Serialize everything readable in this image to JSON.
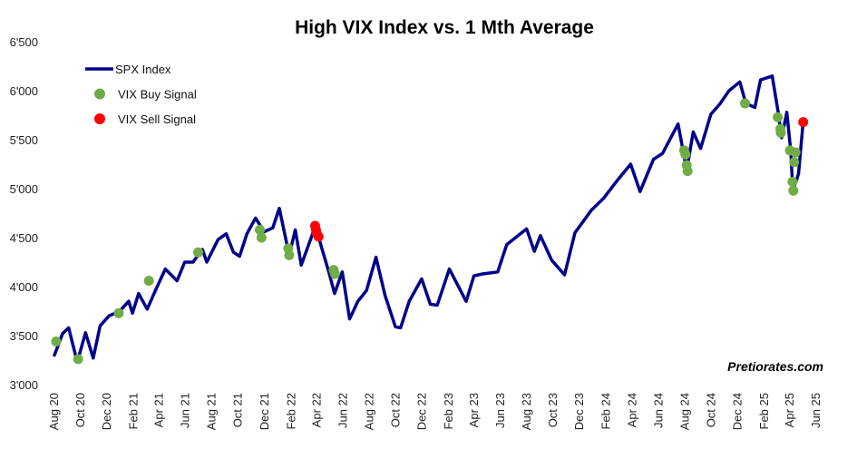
{
  "chart_data": {
    "type": "line",
    "title": "High VIX Index vs. 1 Mth Average",
    "xlabel": "",
    "ylabel": "",
    "ylim": [
      3000,
      6500
    ],
    "yticks": [
      "3'000",
      "3'500",
      "4'000",
      "4'500",
      "5'000",
      "5'500",
      "6'000",
      "6'500"
    ],
    "ytick_values": [
      3000,
      3500,
      4000,
      4500,
      5000,
      5500,
      6000,
      6500
    ],
    "xlim": [
      "2020-08-01",
      "2025-06-01"
    ],
    "xticks": [
      "Aug 20",
      "Oct 20",
      "Dec 20",
      "Feb 21",
      "Apr 21",
      "Jun 21",
      "Aug 21",
      "Oct 21",
      "Dec 21",
      "Feb 22",
      "Apr 22",
      "Jun 22",
      "Aug 22",
      "Oct 22",
      "Dec 22",
      "Feb 23",
      "Apr 23",
      "Jun 23",
      "Aug 23",
      "Oct 23",
      "Dec 23",
      "Feb 24",
      "Apr 24",
      "Jun 24",
      "Aug 24",
      "Oct 24",
      "Dec 24",
      "Feb 25",
      "Apr 25",
      "Jun 25"
    ],
    "xtick_dates": [
      "2020-08-01",
      "2020-10-01",
      "2020-12-01",
      "2021-02-01",
      "2021-04-01",
      "2021-06-01",
      "2021-08-01",
      "2021-10-01",
      "2021-12-01",
      "2022-02-01",
      "2022-04-01",
      "2022-06-01",
      "2022-08-01",
      "2022-10-01",
      "2022-12-01",
      "2023-02-01",
      "2023-04-01",
      "2023-06-01",
      "2023-08-01",
      "2023-10-01",
      "2023-12-01",
      "2024-02-01",
      "2024-04-01",
      "2024-06-01",
      "2024-08-01",
      "2024-10-01",
      "2024-12-01",
      "2025-02-01",
      "2025-04-01",
      "2025-06-01"
    ],
    "legend_position": "top-left",
    "grid": false,
    "series": [
      {
        "name": "SPX Index",
        "kind": "line",
        "color": "#00008B",
        "points": [
          [
            "2020-08-01",
            3300
          ],
          [
            "2020-08-20",
            3520
          ],
          [
            "2020-09-03",
            3580
          ],
          [
            "2020-09-23",
            3230
          ],
          [
            "2020-10-12",
            3530
          ],
          [
            "2020-10-30",
            3270
          ],
          [
            "2020-11-15",
            3600
          ],
          [
            "2020-12-05",
            3700
          ],
          [
            "2020-12-30",
            3750
          ],
          [
            "2021-01-20",
            3850
          ],
          [
            "2021-01-29",
            3730
          ],
          [
            "2021-02-12",
            3930
          ],
          [
            "2021-03-04",
            3770
          ],
          [
            "2021-03-25",
            3980
          ],
          [
            "2021-04-15",
            4180
          ],
          [
            "2021-05-12",
            4060
          ],
          [
            "2021-05-30",
            4250
          ],
          [
            "2021-06-18",
            4250
          ],
          [
            "2021-07-10",
            4380
          ],
          [
            "2021-07-20",
            4250
          ],
          [
            "2021-08-15",
            4480
          ],
          [
            "2021-09-03",
            4540
          ],
          [
            "2021-09-20",
            4350
          ],
          [
            "2021-10-04",
            4310
          ],
          [
            "2021-10-21",
            4540
          ],
          [
            "2021-11-10",
            4700
          ],
          [
            "2021-11-30",
            4560
          ],
          [
            "2021-12-20",
            4600
          ],
          [
            "2022-01-04",
            4800
          ],
          [
            "2022-01-27",
            4320
          ],
          [
            "2022-02-10",
            4580
          ],
          [
            "2022-02-24",
            4220
          ],
          [
            "2022-03-29",
            4620
          ],
          [
            "2022-04-12",
            4400
          ],
          [
            "2022-04-30",
            4130
          ],
          [
            "2022-05-12",
            3930
          ],
          [
            "2022-05-30",
            4150
          ],
          [
            "2022-06-16",
            3670
          ],
          [
            "2022-07-05",
            3850
          ],
          [
            "2022-07-25",
            3960
          ],
          [
            "2022-08-16",
            4300
          ],
          [
            "2022-09-06",
            3910
          ],
          [
            "2022-09-30",
            3590
          ],
          [
            "2022-10-12",
            3580
          ],
          [
            "2022-11-01",
            3850
          ],
          [
            "2022-11-30",
            4080
          ],
          [
            "2022-12-20",
            3820
          ],
          [
            "2023-01-05",
            3810
          ],
          [
            "2023-02-02",
            4180
          ],
          [
            "2023-03-13",
            3850
          ],
          [
            "2023-03-31",
            4110
          ],
          [
            "2023-04-20",
            4130
          ],
          [
            "2023-05-25",
            4150
          ],
          [
            "2023-06-15",
            4430
          ],
          [
            "2023-07-31",
            4590
          ],
          [
            "2023-08-18",
            4360
          ],
          [
            "2023-09-01",
            4520
          ],
          [
            "2023-09-27",
            4270
          ],
          [
            "2023-10-27",
            4120
          ],
          [
            "2023-11-20",
            4550
          ],
          [
            "2023-12-28",
            4780
          ],
          [
            "2024-01-25",
            4900
          ],
          [
            "2024-02-29",
            5100
          ],
          [
            "2024-03-28",
            5250
          ],
          [
            "2024-04-19",
            4970
          ],
          [
            "2024-05-20",
            5300
          ],
          [
            "2024-06-10",
            5360
          ],
          [
            "2024-07-16",
            5660
          ],
          [
            "2024-08-05",
            5190
          ],
          [
            "2024-08-20",
            5580
          ],
          [
            "2024-09-06",
            5410
          ],
          [
            "2024-09-30",
            5760
          ],
          [
            "2024-10-20",
            5860
          ],
          [
            "2024-11-11",
            6000
          ],
          [
            "2024-12-06",
            6090
          ],
          [
            "2024-12-20",
            5870
          ],
          [
            "2025-01-10",
            5830
          ],
          [
            "2025-01-23",
            6110
          ],
          [
            "2025-02-19",
            6150
          ],
          [
            "2025-03-05",
            5780
          ],
          [
            "2025-03-13",
            5520
          ],
          [
            "2025-03-25",
            5780
          ],
          [
            "2025-04-03",
            5390
          ],
          [
            "2025-04-08",
            4980
          ],
          [
            "2025-04-21",
            5150
          ],
          [
            "2025-05-02",
            5690
          ]
        ]
      },
      {
        "name": "VIX Buy Signal",
        "kind": "scatter",
        "color": "#70AD47",
        "points": [
          [
            "2020-08-05",
            3440
          ],
          [
            "2020-09-25",
            3260
          ],
          [
            "2020-12-28",
            3730
          ],
          [
            "2021-03-08",
            4060
          ],
          [
            "2021-06-30",
            4350
          ],
          [
            "2021-11-20",
            4580
          ],
          [
            "2021-11-24",
            4500
          ],
          [
            "2022-01-25",
            4390
          ],
          [
            "2022-01-27",
            4320
          ],
          [
            "2022-05-10",
            4170
          ],
          [
            "2022-05-13",
            4130
          ],
          [
            "2024-07-30",
            5390
          ],
          [
            "2024-08-02",
            5350
          ],
          [
            "2024-08-05",
            5240
          ],
          [
            "2024-08-07",
            5180
          ],
          [
            "2024-12-18",
            5870
          ],
          [
            "2025-03-04",
            5730
          ],
          [
            "2025-03-10",
            5610
          ],
          [
            "2025-03-11",
            5570
          ],
          [
            "2025-04-01",
            5390
          ],
          [
            "2025-04-07",
            5070
          ],
          [
            "2025-04-09",
            4980
          ],
          [
            "2025-04-11",
            5270
          ],
          [
            "2025-04-14",
            5370
          ]
        ]
      },
      {
        "name": "VIX Sell Signal",
        "kind": "scatter",
        "color": "#FF0000",
        "points": [
          [
            "2022-03-28",
            4620
          ],
          [
            "2022-03-30",
            4580
          ],
          [
            "2022-04-01",
            4540
          ],
          [
            "2022-04-05",
            4510
          ],
          [
            "2025-05-02",
            5680
          ]
        ]
      }
    ],
    "annotations": [
      "Pretiorates.com"
    ]
  }
}
